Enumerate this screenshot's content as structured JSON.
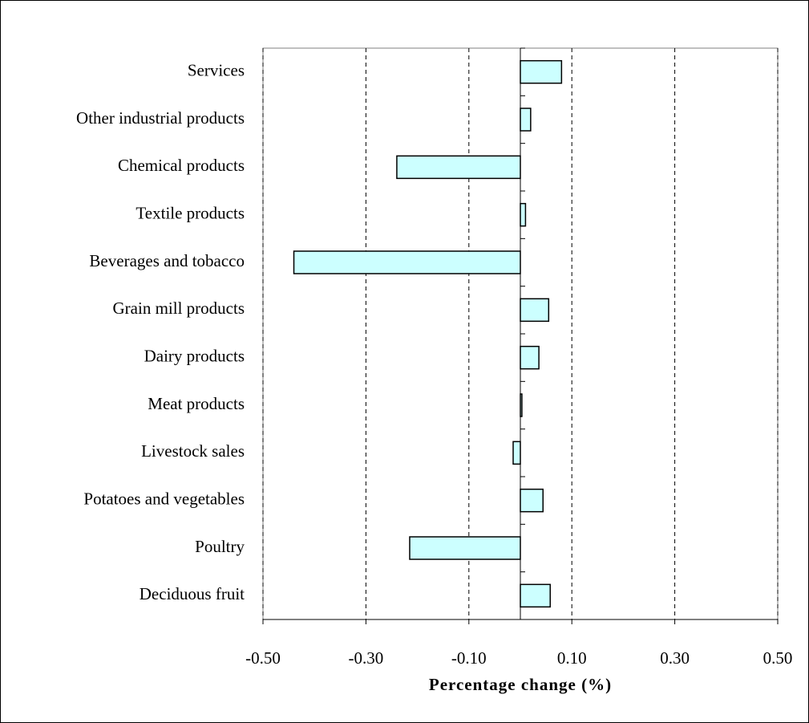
{
  "chart_data": {
    "type": "bar",
    "orientation": "horizontal",
    "x_label": "Percentage change (%)",
    "categories": [
      "Services",
      "Other industrial products",
      "Chemical products",
      "Textile products",
      "Beverages and tobacco",
      "Grain mill products",
      "Dairy products",
      "Meat products",
      "Livestock sales",
      "Potatoes and vegetables",
      "Poultry",
      "Deciduous fruit"
    ],
    "values": [
      0.08,
      0.02,
      -0.24,
      0.01,
      -0.44,
      0.055,
      0.036,
      0.003,
      -0.014,
      0.044,
      -0.215,
      0.058
    ],
    "color": "#ccffff",
    "xlim": [
      -0.5,
      0.5
    ],
    "xticks": [
      {
        "value": -0.5,
        "label": "-0.50"
      },
      {
        "value": -0.3,
        "label": "-0.30"
      },
      {
        "value": -0.1,
        "label": "-0.10"
      },
      {
        "value": 0.1,
        "label": "0.10"
      },
      {
        "value": 0.3,
        "label": "0.30"
      },
      {
        "value": 0.5,
        "label": "0.50"
      }
    ],
    "grid": true
  }
}
